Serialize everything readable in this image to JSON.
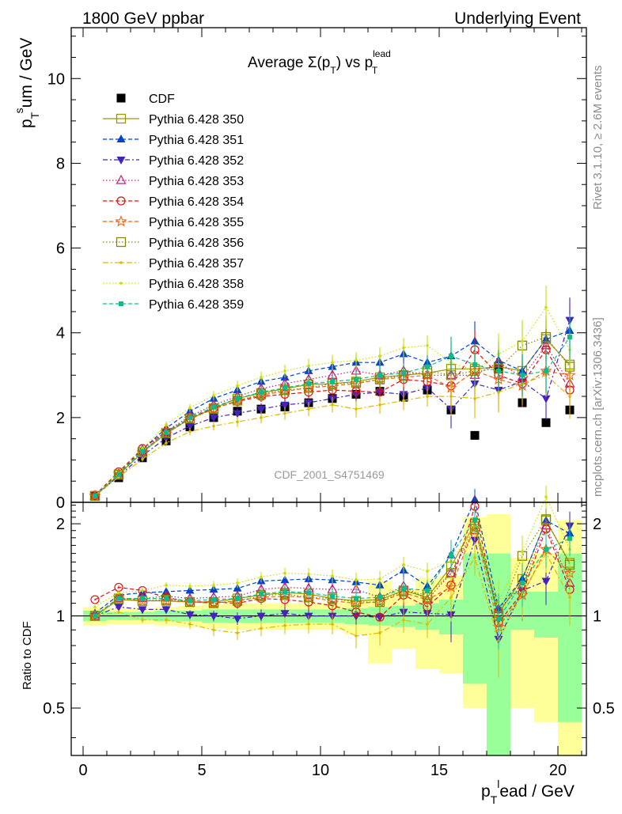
{
  "header": {
    "left": "1800 GeV ppbar",
    "right": "Underlying Event"
  },
  "side_labels": {
    "rivet": "Rivet 3.1.10, ≥ 2.6M events",
    "mcplots": "mcplots.cern.ch [arXiv:1306.3436]"
  },
  "title": {
    "main": "Average Σ(p",
    "sub1": "T",
    "mid": ") vs p",
    "sup2": "lead",
    "sub2": "T"
  },
  "watermark": "CDF_2001_S4751469",
  "colors": {
    "cdf": "#000000",
    "p350": "#999900",
    "p351": "#0044cc",
    "p352": "#4422bb",
    "p353": "#bb2277",
    "p354": "#dd1111",
    "p355": "#ee6611",
    "p356": "#888800",
    "p357": "#ddbb00",
    "p358": "#ccdd00",
    "p359": "#11bb88",
    "band_inner": "#99ff99",
    "band_outer": "#ffff99"
  },
  "chart_data": [
    {
      "type": "scatter",
      "title": "Average Σ(pT) vs pT lead",
      "xlabel": "p_T^lead / GeV",
      "ylabel": "p_T^sum / GeV",
      "xlim": [
        -0.5,
        21.2
      ],
      "ylim": [
        0,
        11.2
      ],
      "x_ticks": [
        "0",
        "5",
        "10",
        "15",
        "20"
      ],
      "y_ticks": [
        "0",
        "2",
        "4",
        "6",
        "8",
        "10"
      ],
      "legend_position": "top-left",
      "x": [
        0.5,
        1.5,
        2.5,
        3.5,
        4.5,
        5.5,
        6.5,
        7.5,
        8.5,
        9.5,
        10.5,
        11.5,
        12.5,
        13.5,
        14.5,
        15.5,
        16.5,
        17.5,
        18.5,
        19.5,
        20.5
      ],
      "series": [
        {
          "name": "CDF",
          "key": "cdf",
          "marker": "square-filled",
          "dash": "none",
          "values": [
            0.15,
            0.58,
            1.05,
            1.45,
            1.78,
            2.0,
            2.15,
            2.2,
            2.25,
            2.35,
            2.45,
            2.55,
            2.62,
            2.48,
            2.65,
            2.18,
            1.58,
            3.15,
            2.35,
            1.88,
            2.18
          ]
        },
        {
          "name": "Pythia 6.428 350",
          "key": "p350",
          "marker": "square-open",
          "dash": "none",
          "values": [
            0.15,
            0.65,
            1.18,
            1.63,
            1.97,
            2.22,
            2.45,
            2.58,
            2.68,
            2.78,
            2.8,
            2.85,
            2.95,
            3.0,
            3.05,
            3.15,
            3.15,
            3.2,
            3.1,
            3.85,
            3.25
          ]
        },
        {
          "name": "Pythia 6.428 351",
          "key": "p351",
          "marker": "triangle-up-filled",
          "dash": "5,3",
          "values": [
            0.16,
            0.68,
            1.25,
            1.75,
            2.15,
            2.45,
            2.65,
            2.85,
            2.95,
            3.1,
            3.2,
            3.3,
            3.3,
            3.5,
            3.3,
            3.45,
            3.8,
            3.35,
            3.1,
            3.85,
            4.05
          ]
        },
        {
          "name": "Pythia 6.428 352",
          "key": "p352",
          "marker": "triangle-down-filled",
          "dash": "6,3,2,3",
          "values": [
            0.15,
            0.62,
            1.1,
            1.52,
            1.8,
            2.0,
            2.1,
            2.2,
            2.3,
            2.35,
            2.45,
            2.55,
            2.6,
            2.55,
            2.7,
            2.2,
            2.8,
            2.65,
            2.85,
            2.45,
            4.3
          ]
        },
        {
          "name": "Pythia 6.428 353",
          "key": "p353",
          "marker": "triangle-up-open",
          "dash": "1.5,2.5",
          "values": [
            0.15,
            0.66,
            1.2,
            1.68,
            2.03,
            2.3,
            2.5,
            2.68,
            2.8,
            2.9,
            3.0,
            3.1,
            3.0,
            3.1,
            3.0,
            3.0,
            3.0,
            3.3,
            2.95,
            3.7,
            2.8
          ]
        },
        {
          "name": "Pythia 6.428 354",
          "key": "p354",
          "marker": "circle-open",
          "dash": "5,3",
          "values": [
            0.17,
            0.72,
            1.27,
            1.67,
            1.98,
            2.22,
            2.38,
            2.5,
            2.55,
            2.6,
            2.65,
            2.62,
            2.6,
            2.9,
            2.85,
            2.75,
            3.6,
            3.0,
            2.8,
            3.6,
            2.65
          ]
        },
        {
          "name": "Pythia 6.428 355",
          "key": "p355",
          "marker": "star-open",
          "dash": "5,3",
          "values": [
            0.15,
            0.67,
            1.18,
            1.62,
            1.97,
            2.2,
            2.4,
            2.53,
            2.62,
            2.7,
            2.75,
            2.8,
            2.9,
            2.95,
            3.0,
            2.7,
            3.1,
            2.9,
            2.75,
            3.1,
            3.0
          ]
        },
        {
          "name": "Pythia 6.428 356",
          "key": "p356",
          "marker": "square-open",
          "dash": "1.5,2.5",
          "values": [
            0.15,
            0.66,
            1.18,
            1.64,
            1.98,
            2.2,
            2.4,
            2.55,
            2.65,
            2.7,
            2.8,
            2.82,
            2.9,
            3.0,
            3.1,
            3.0,
            3.1,
            3.15,
            3.7,
            3.9,
            3.2
          ]
        },
        {
          "name": "Pythia 6.428 357",
          "key": "p357",
          "marker": "dot",
          "dash": "7,3,2,3",
          "values": [
            0.15,
            0.6,
            1.02,
            1.4,
            1.67,
            1.8,
            1.9,
            2.0,
            2.1,
            2.2,
            2.3,
            2.2,
            2.3,
            2.4,
            2.5,
            2.5,
            2.45,
            2.6,
            2.8,
            3.0,
            2.5
          ]
        },
        {
          "name": "Pythia 6.428 358",
          "key": "p358",
          "marker": "dot",
          "dash": "1.5,2.5",
          "values": [
            0.16,
            0.69,
            1.27,
            1.83,
            2.23,
            2.52,
            2.75,
            2.95,
            3.1,
            3.22,
            3.3,
            3.35,
            3.45,
            3.65,
            3.7,
            3.3,
            3.1,
            3.5,
            3.8,
            4.6,
            3.6
          ]
        },
        {
          "name": "Pythia 6.428 359",
          "key": "p359",
          "marker": "square-filled-small",
          "dash": "5,3",
          "values": [
            0.15,
            0.66,
            1.2,
            1.65,
            2.0,
            2.25,
            2.45,
            2.6,
            2.7,
            2.8,
            2.85,
            2.9,
            3.0,
            3.05,
            3.2,
            3.45,
            3.25,
            3.1,
            3.0,
            3.1,
            3.9
          ]
        }
      ]
    },
    {
      "type": "scatter",
      "title": "",
      "xlabel": "p_T^lead / GeV",
      "ylabel": "Ratio to CDF",
      "ylim": [
        0.35,
        2.35
      ],
      "log_y": true,
      "y_ticks": [
        "0.5",
        "1",
        "2"
      ],
      "x": [
        0.5,
        1.5,
        2.5,
        3.5,
        4.5,
        5.5,
        6.5,
        7.5,
        8.5,
        9.5,
        10.5,
        11.5,
        12.5,
        13.5,
        14.5,
        15.5,
        16.5,
        17.5,
        18.5,
        19.5,
        20.5
      ],
      "reference_line": 1,
      "band_inner": {
        "lo": [
          0.96,
          0.97,
          0.97,
          0.96,
          0.96,
          0.95,
          0.95,
          0.95,
          0.95,
          0.95,
          0.95,
          0.94,
          0.93,
          0.92,
          0.9,
          0.87,
          0.6,
          0.35,
          0.9,
          0.85,
          0.45
        ],
        "hi": [
          1.04,
          1.03,
          1.03,
          1.04,
          1.04,
          1.05,
          1.05,
          1.05,
          1.05,
          1.05,
          1.05,
          1.06,
          1.07,
          1.08,
          1.1,
          1.13,
          1.6,
          1.6,
          1.2,
          1.2,
          1.6
        ]
      },
      "band_outer": {
        "lo": [
          0.93,
          0.94,
          0.94,
          0.93,
          0.92,
          0.91,
          0.9,
          0.9,
          0.9,
          0.9,
          0.9,
          0.87,
          0.7,
          0.78,
          0.67,
          0.65,
          0.5,
          0.35,
          0.5,
          0.45,
          0.35
        ],
        "hi": [
          1.07,
          1.06,
          1.06,
          1.07,
          1.08,
          1.09,
          1.1,
          1.1,
          1.1,
          1.1,
          1.1,
          1.13,
          1.3,
          1.22,
          1.33,
          1.35,
          2.1,
          2.15,
          1.55,
          1.6,
          2.05
        ]
      },
      "series": [
        {
          "name": "Pythia 6.428 350",
          "key": "p350",
          "values": [
            1.0,
            1.13,
            1.12,
            1.12,
            1.11,
            1.11,
            1.14,
            1.17,
            1.19,
            1.18,
            1.14,
            1.12,
            1.13,
            1.21,
            1.15,
            1.45,
            2.0,
            1.02,
            1.32,
            2.05,
            1.49
          ]
        },
        {
          "name": "Pythia 6.428 351",
          "key": "p351",
          "values": [
            1.02,
            1.17,
            1.19,
            1.2,
            1.21,
            1.22,
            1.23,
            1.3,
            1.31,
            1.32,
            1.31,
            1.29,
            1.26,
            1.41,
            1.25,
            1.58,
            2.4,
            1.06,
            1.32,
            2.05,
            1.86
          ]
        },
        {
          "name": "Pythia 6.428 352",
          "key": "p352",
          "values": [
            1.0,
            1.07,
            1.05,
            1.05,
            1.01,
            1.0,
            0.98,
            1.0,
            1.02,
            1.0,
            1.0,
            1.0,
            0.99,
            1.03,
            1.02,
            1.01,
            1.77,
            0.84,
            1.21,
            1.3,
            1.97
          ]
        },
        {
          "name": "Pythia 6.428 353",
          "key": "p353",
          "values": [
            1.0,
            1.14,
            1.14,
            1.16,
            1.14,
            1.15,
            1.16,
            1.22,
            1.24,
            1.23,
            1.22,
            1.22,
            1.15,
            1.25,
            1.13,
            1.38,
            1.9,
            1.05,
            1.26,
            1.97,
            1.28
          ]
        },
        {
          "name": "Pythia 6.428 354",
          "key": "p354",
          "values": [
            1.13,
            1.24,
            1.21,
            1.15,
            1.11,
            1.11,
            1.1,
            1.14,
            1.13,
            1.11,
            1.08,
            1.03,
            0.99,
            1.17,
            1.07,
            1.26,
            2.28,
            0.95,
            1.19,
            1.92,
            1.22
          ]
        },
        {
          "name": "Pythia 6.428 355",
          "key": "p355",
          "values": [
            1.0,
            1.15,
            1.12,
            1.12,
            1.11,
            1.1,
            1.12,
            1.15,
            1.16,
            1.15,
            1.12,
            1.1,
            1.11,
            1.19,
            1.13,
            1.24,
            1.96,
            0.92,
            1.17,
            1.65,
            1.38
          ]
        },
        {
          "name": "Pythia 6.428 356",
          "key": "p356",
          "values": [
            1.0,
            1.14,
            1.12,
            1.13,
            1.11,
            1.1,
            1.12,
            1.16,
            1.18,
            1.15,
            1.14,
            1.11,
            1.11,
            1.21,
            1.17,
            1.38,
            1.96,
            1.0,
            1.57,
            2.07,
            1.47
          ]
        },
        {
          "name": "Pythia 6.428 357",
          "key": "p357",
          "values": [
            1.0,
            1.03,
            0.97,
            0.97,
            0.94,
            0.9,
            0.88,
            0.91,
            0.93,
            0.94,
            0.94,
            0.86,
            0.88,
            0.97,
            0.94,
            1.15,
            1.55,
            0.83,
            1.19,
            1.6,
            1.15
          ]
        },
        {
          "name": "Pythia 6.428 358",
          "key": "p358",
          "values": [
            1.07,
            1.19,
            1.21,
            1.26,
            1.25,
            1.26,
            1.28,
            1.34,
            1.38,
            1.37,
            1.35,
            1.31,
            1.32,
            1.47,
            1.4,
            1.51,
            1.96,
            1.11,
            1.62,
            2.45,
            1.65
          ]
        },
        {
          "name": "Pythia 6.428 359",
          "key": "p359",
          "values": [
            1.0,
            1.14,
            1.14,
            1.14,
            1.12,
            1.13,
            1.14,
            1.18,
            1.2,
            1.19,
            1.16,
            1.14,
            1.15,
            1.23,
            1.21,
            1.58,
            2.06,
            0.98,
            1.28,
            1.65,
            1.79
          ]
        }
      ]
    }
  ]
}
